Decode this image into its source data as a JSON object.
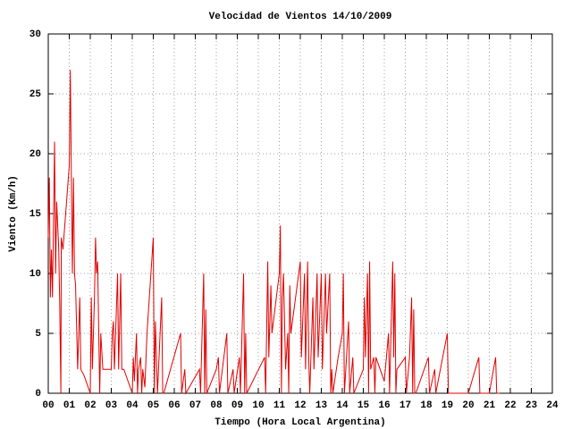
{
  "chart_data": {
    "type": "line",
    "title": "Velocidad de Vientos 14/10/2009",
    "x_label": "Tiempo (Hora Local Argentina)",
    "y_label": "Viento (Km/h)",
    "color": "#e00000",
    "grid": true,
    "xlim": [
      0,
      24
    ],
    "ylim": [
      0,
      30
    ],
    "xticks": [
      {
        "value": 0,
        "label": "00"
      },
      {
        "value": 1,
        "label": "01"
      },
      {
        "value": 2,
        "label": "02"
      },
      {
        "value": 3,
        "label": "03"
      },
      {
        "value": 4,
        "label": "04"
      },
      {
        "value": 5,
        "label": "05"
      },
      {
        "value": 6,
        "label": "06"
      },
      {
        "value": 7,
        "label": "07"
      },
      {
        "value": 8,
        "label": "08"
      },
      {
        "value": 9,
        "label": "09"
      },
      10,
      11,
      12,
      13,
      14,
      15,
      16,
      17,
      18,
      19,
      20,
      21,
      22,
      23,
      24
    ],
    "yticks": [
      0,
      5,
      10,
      15,
      20,
      25,
      30
    ],
    "x": [
      0.0,
      0.05,
      0.1,
      0.15,
      0.2,
      0.3,
      0.35,
      0.4,
      0.5,
      0.55,
      0.6,
      0.62,
      0.7,
      1.0,
      1.05,
      1.1,
      1.15,
      1.2,
      1.25,
      1.3,
      1.4,
      1.5,
      1.55,
      1.7,
      2.0,
      2.05,
      2.1,
      2.2,
      2.25,
      2.3,
      2.35,
      2.45,
      2.5,
      2.6,
      3.0,
      3.05,
      3.1,
      3.15,
      3.3,
      3.35,
      3.45,
      3.5,
      3.6,
      4.0,
      4.05,
      4.1,
      4.2,
      4.25,
      4.3,
      4.4,
      4.45,
      4.5,
      4.6,
      4.7,
      5.0,
      5.05,
      5.1,
      5.15,
      5.2,
      5.4,
      5.45,
      5.5,
      6.3,
      6.35,
      6.5,
      6.55,
      7.2,
      7.25,
      7.4,
      7.45,
      7.5,
      7.55,
      8.0,
      8.1,
      8.15,
      8.5,
      8.55,
      8.8,
      8.85,
      9.1,
      9.15,
      9.3,
      9.35,
      9.4,
      9.45,
      10.3,
      10.35,
      10.45,
      10.5,
      10.6,
      10.65,
      11.0,
      11.05,
      11.1,
      11.15,
      11.2,
      11.3,
      11.4,
      11.45,
      11.5,
      11.55,
      12.0,
      12.05,
      12.2,
      12.25,
      12.35,
      12.4,
      12.45,
      12.6,
      12.65,
      12.8,
      12.85,
      13.0,
      13.05,
      13.2,
      13.25,
      13.4,
      13.45,
      13.5,
      13.55,
      13.8,
      14.0,
      14.05,
      14.1,
      14.3,
      14.35,
      14.5,
      14.55,
      15.0,
      15.05,
      15.1,
      15.2,
      15.25,
      15.3,
      15.35,
      15.5,
      15.55,
      15.6,
      16.0,
      16.2,
      16.25,
      16.4,
      16.45,
      16.5,
      16.55,
      16.6,
      17.0,
      17.05,
      17.2,
      17.3,
      17.35,
      17.4,
      17.45,
      17.5,
      18.1,
      18.15,
      18.4,
      18.45,
      19.0,
      19.05,
      20.0,
      20.5,
      20.55,
      21.0,
      21.3,
      21.35,
      21.5
    ],
    "values": [
      13,
      18,
      8,
      12,
      8,
      21,
      10,
      16,
      12,
      7,
      0,
      13,
      12,
      19,
      27,
      18,
      10,
      18,
      10,
      9,
      2,
      8,
      2,
      1.5,
      0,
      8,
      2,
      8,
      13,
      10,
      11,
      0,
      5,
      2,
      2,
      5,
      6,
      2,
      10,
      2,
      10,
      2,
      2,
      0,
      3,
      1,
      5,
      0,
      2,
      3,
      0,
      2,
      0.5,
      5,
      13,
      0,
      6,
      3,
      0,
      8,
      0,
      0,
      5,
      0,
      2,
      0,
      2,
      0,
      10,
      0,
      7,
      0,
      2,
      3,
      0,
      5,
      0,
      2,
      0,
      3,
      0,
      10,
      0,
      5,
      0,
      3,
      0,
      11,
      3,
      9,
      5,
      10,
      14,
      0,
      8,
      10,
      2,
      5,
      0,
      9,
      5,
      11,
      3,
      10,
      2,
      11,
      3,
      0,
      8,
      2,
      10,
      3,
      10,
      2,
      10,
      5,
      10,
      0,
      2,
      0,
      3,
      5,
      10,
      0,
      6,
      0,
      3,
      0,
      2,
      8,
      3,
      10,
      0,
      11,
      2,
      3,
      0,
      3,
      1,
      5,
      0,
      11,
      3,
      10,
      0,
      2,
      3,
      0,
      3,
      8,
      0,
      7,
      0,
      0,
      3,
      0,
      2,
      0,
      5,
      0,
      0,
      3,
      0,
      0,
      3,
      0,
      0
    ]
  }
}
